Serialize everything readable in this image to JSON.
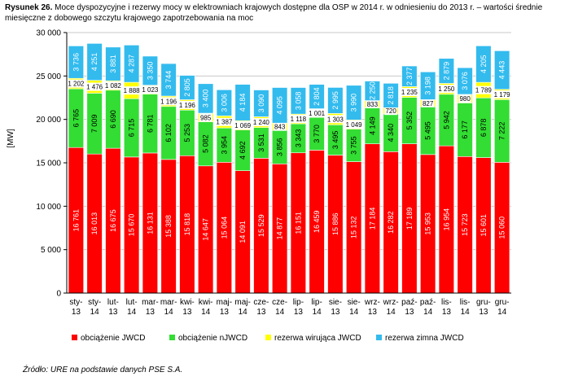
{
  "figure": {
    "label": "Rysunek 26.",
    "caption": "Moce dyspozycyjne i rezerwy mocy w elektrowniach krajowych dostępne dla OSP w 2014 r. w odniesieniu do 2013 r. – wartości średnie miesięczne z dobowego szczytu krajowego zapotrzebowania na moc",
    "source": "Źródło: URE na podstawie danych PSE S.A."
  },
  "chart_data": {
    "type": "bar",
    "stacked": true,
    "ylabel": "[MW]",
    "ylim": [
      0,
      30000
    ],
    "yticks": [
      0,
      5000,
      10000,
      15000,
      20000,
      25000,
      30000
    ],
    "ytick_labels": [
      "0",
      "5 000",
      "10 000",
      "15 000",
      "20 000",
      "25 000",
      "30 000"
    ],
    "grid": true,
    "legend_position": "bottom",
    "categories": [
      [
        "sty-",
        "13"
      ],
      [
        "sty-",
        "14"
      ],
      [
        "lut-",
        "13"
      ],
      [
        "lut-",
        "14"
      ],
      [
        "mar-",
        "13"
      ],
      [
        "mar-",
        "14"
      ],
      [
        "kwi-",
        "13"
      ],
      [
        "kwi-",
        "14"
      ],
      [
        "maj-",
        "13"
      ],
      [
        "maj-",
        "14"
      ],
      [
        "cze-",
        "13"
      ],
      [
        "cze-",
        "14"
      ],
      [
        "lip-",
        "13"
      ],
      [
        "lip-",
        "14"
      ],
      [
        "sie-",
        "13"
      ],
      [
        "sie-",
        "14"
      ],
      [
        "wrz-",
        "13"
      ],
      [
        "wrz-",
        "14"
      ],
      [
        "paź-",
        "13"
      ],
      [
        "paź-",
        "14"
      ],
      [
        "lis-",
        "13"
      ],
      [
        "lis-",
        "14"
      ],
      [
        "gru-",
        "13"
      ],
      [
        "gru-",
        "14"
      ]
    ],
    "series": [
      {
        "name": "obciążenie JWCD",
        "color": "#ff0000",
        "values": [
          16761,
          16013,
          16675,
          15670,
          16131,
          15388,
          15818,
          14647,
          15064,
          14091,
          15529,
          14877,
          16151,
          16459,
          15886,
          15132,
          17184,
          16282,
          17189,
          15953,
          16954,
          15723,
          15601,
          15060
        ],
        "labels": [
          "16 761",
          "16 013",
          "16 675",
          "15 670",
          "16 131",
          "15 388",
          "15 818",
          "14 647",
          "15 064",
          "14 091",
          "15 529",
          "14 877",
          "16 151",
          "16 459",
          "15 886",
          "15 132",
          "17 184",
          "16 282",
          "17 189",
          "15 953",
          "16 954",
          "15 723",
          "15 601",
          "15 060"
        ]
      },
      {
        "name": "obciążenie nJWCD",
        "color": "#33dd33",
        "values": [
          6765,
          7009,
          6690,
          6715,
          6781,
          6102,
          5253,
          5082,
          3954,
          4692,
          3531,
          3856,
          3343,
          3770,
          3495,
          3755,
          4149,
          4340,
          5352,
          5495,
          5942,
          6177,
          6878,
          7222
        ],
        "labels": [
          "6 765",
          "7 009",
          "6 690",
          "6 715",
          "6 781",
          "6 102",
          "5 253",
          "5 082",
          "3 954",
          "4 692",
          "3 531",
          "3 856",
          "3 343",
          "3 770",
          "3 495",
          "3 755",
          "4 149",
          "4 340",
          "5 352",
          "5 495",
          "5 942",
          "6 177",
          "6 878",
          "7 222"
        ]
      },
      {
        "name": "rezerwa wirująca JWCD",
        "color": "#ffff00",
        "values": [
          1202,
          1476,
          1082,
          1888,
          1023,
          1196,
          1196,
          985,
          1387,
          1069,
          1240,
          843,
          1118,
          1001,
          1303,
          1049,
          833,
          720,
          1235,
          827,
          1250,
          980,
          1789,
          1179
        ],
        "labels": [
          "1 202",
          "1 476",
          "1 082",
          "1 888",
          "1 023",
          "1 196",
          "1 196",
          "985",
          "1 387",
          "1 069",
          "1 240",
          "843",
          "1 118",
          "1 001",
          "1 303",
          "1 049",
          "833",
          "720",
          "1 235",
          "827",
          "1 250",
          "980",
          "1 789",
          "1 179"
        ]
      },
      {
        "name": "rezerwa zimna JWCD",
        "color": "#33bbee",
        "values": [
          3736,
          4251,
          3881,
          4287,
          3350,
          3744,
          2805,
          3400,
          3006,
          4184,
          3090,
          4095,
          3058,
          2804,
          2995,
          3990,
          2250,
          2818,
          2377,
          3198,
          2879,
          3076,
          4205,
          4443
        ],
        "labels": [
          "3 736",
          "4 251",
          "3 881",
          "4 287",
          "3 350",
          "3 744",
          "2 805",
          "3 400",
          "3 006",
          "4 184",
          "3 090",
          "4 095",
          "3 058",
          "2 804",
          "2 995",
          "3 990",
          "2 250",
          "2 818",
          "2 377",
          "3 198",
          "2 879",
          "3 076",
          "4 205",
          "4 443"
        ]
      }
    ]
  }
}
